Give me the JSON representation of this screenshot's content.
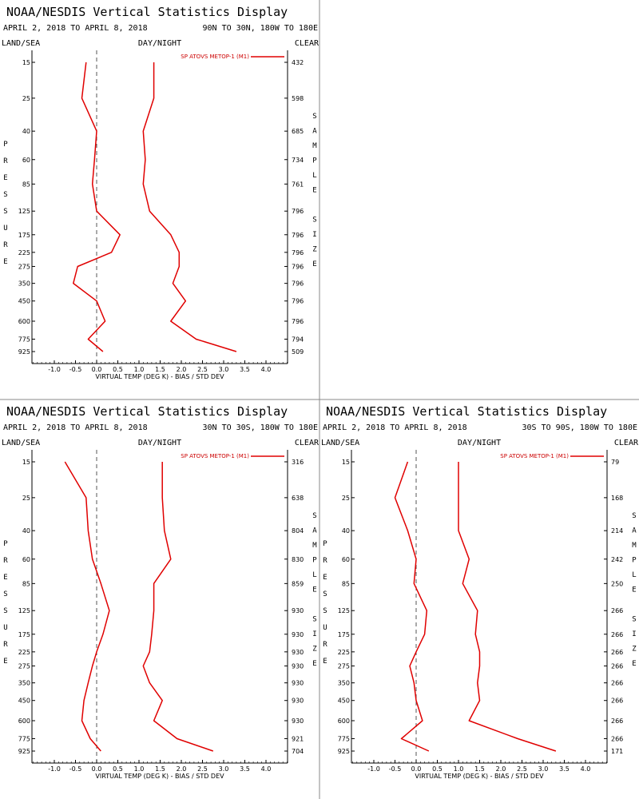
{
  "colors": {
    "series": "#e00000",
    "axis": "#000000",
    "zero_line": "#555555",
    "divider": "#888888",
    "background": "#ffffff"
  },
  "chart_data": [
    {
      "type": "line",
      "title": "NOAA/NESDIS Vertical Statistics Display",
      "date_range": "APRIL 2, 2018 TO APRIL 8, 2018",
      "region": "90N TO 30N, 180W TO 180E",
      "left_label": "LAND/SEA",
      "center_label": "DAY/NIGHT",
      "right_label": "CLEAR",
      "ylabel": "PRESSURE",
      "y2label": "SAMPLE SIZE",
      "xlabel": "VIRTUAL TEMP (DEG K) - BIAS / STD DEV",
      "xlim": [
        -1.5,
        4.5
      ],
      "xticks": [
        "-1.0",
        "-0.5",
        "0.0",
        "0.5",
        "1.0",
        "1.5",
        "2.0",
        "2.5",
        "3.0",
        "3.5",
        "4.0"
      ],
      "yaxis": "log pressure (hPa), inverted",
      "pressure_levels": [
        "15",
        "25",
        "40",
        "60",
        "85",
        "125",
        "175",
        "225",
        "275",
        "350",
        "450",
        "600",
        "775",
        "925"
      ],
      "sample_size": [
        "432",
        "598",
        "685",
        "734",
        "761",
        "796",
        "796",
        "796",
        "796",
        "796",
        "796",
        "796",
        "794",
        "509"
      ],
      "legend": "SP ATOVS METOP-1 (M1)",
      "series": [
        {
          "role": "bias",
          "values": [
            -0.25,
            -0.35,
            0.0,
            -0.05,
            -0.1,
            0.0,
            0.55,
            0.35,
            -0.45,
            -0.55,
            0.0,
            0.2,
            -0.2,
            0.15
          ]
        },
        {
          "role": "std_dev",
          "values": [
            1.35,
            1.35,
            1.1,
            1.15,
            1.1,
            1.25,
            1.75,
            1.95,
            1.95,
            1.8,
            2.1,
            1.75,
            2.35,
            3.3
          ]
        }
      ]
    },
    {
      "type": "line",
      "title": "NOAA/NESDIS Vertical Statistics Display",
      "date_range": "APRIL 2, 2018 TO APRIL 8, 2018",
      "region": "30N TO 30S, 180W TO 180E",
      "left_label": "LAND/SEA",
      "center_label": "DAY/NIGHT",
      "right_label": "CLEAR",
      "ylabel": "PRESSURE",
      "y2label": "SAMPLE SIZE",
      "xlabel": "VIRTUAL TEMP (DEG K) - BIAS / STD DEV",
      "xlim": [
        -1.5,
        4.5
      ],
      "xticks": [
        "-1.0",
        "-0.5",
        "0.0",
        "0.5",
        "1.0",
        "1.5",
        "2.0",
        "2.5",
        "3.0",
        "3.5",
        "4.0"
      ],
      "yaxis": "log pressure (hPa), inverted",
      "pressure_levels": [
        "15",
        "25",
        "40",
        "60",
        "85",
        "125",
        "175",
        "225",
        "275",
        "350",
        "450",
        "600",
        "775",
        "925"
      ],
      "sample_size": [
        "316",
        "638",
        "804",
        "830",
        "859",
        "930",
        "930",
        "930",
        "930",
        "930",
        "930",
        "930",
        "921",
        "704"
      ],
      "legend": "SP ATOVS METOP-1 (M1)",
      "series": [
        {
          "role": "bias",
          "values": [
            -0.75,
            -0.25,
            -0.2,
            -0.1,
            0.1,
            0.3,
            0.15,
            0.0,
            -0.1,
            -0.2,
            -0.3,
            -0.35,
            -0.15,
            0.1
          ]
        },
        {
          "role": "std_dev",
          "values": [
            1.55,
            1.55,
            1.6,
            1.75,
            1.35,
            1.35,
            1.3,
            1.25,
            1.1,
            1.25,
            1.55,
            1.35,
            1.9,
            2.75
          ]
        }
      ]
    },
    {
      "type": "line",
      "title": "NOAA/NESDIS Vertical Statistics Display",
      "date_range": "APRIL 2, 2018 TO APRIL 8, 2018",
      "region": "30S TO 90S, 180W TO 180E",
      "left_label": "LAND/SEA",
      "center_label": "DAY/NIGHT",
      "right_label": "CLEAR",
      "ylabel": "PRESSURE",
      "y2label": "SAMPLE SIZE",
      "xlabel": "VIRTUAL TEMP (DEG K) - BIAS / STD DEV",
      "xlim": [
        -1.5,
        4.5
      ],
      "xticks": [
        "-1.0",
        "-0.5",
        "0.0",
        "0.5",
        "1.0",
        "1.5",
        "2.0",
        "2.5",
        "3.0",
        "3.5",
        "4.0"
      ],
      "yaxis": "log pressure (hPa), inverted",
      "pressure_levels": [
        "15",
        "25",
        "40",
        "60",
        "85",
        "125",
        "175",
        "225",
        "275",
        "350",
        "450",
        "600",
        "775",
        "925"
      ],
      "sample_size": [
        "79",
        "168",
        "214",
        "242",
        "250",
        "266",
        "266",
        "266",
        "266",
        "266",
        "266",
        "266",
        "266",
        "171"
      ],
      "legend": "SP ATOVS METOP-1 (M1)",
      "series": [
        {
          "role": "bias",
          "values": [
            -0.2,
            -0.5,
            -0.2,
            0.0,
            -0.05,
            0.25,
            0.2,
            0.0,
            -0.15,
            -0.05,
            0.0,
            0.15,
            -0.35,
            0.3
          ]
        },
        {
          "role": "std_dev",
          "values": [
            1.0,
            1.0,
            1.0,
            1.25,
            1.1,
            1.45,
            1.4,
            1.5,
            1.5,
            1.45,
            1.5,
            1.25,
            2.4,
            3.3
          ]
        }
      ]
    }
  ]
}
